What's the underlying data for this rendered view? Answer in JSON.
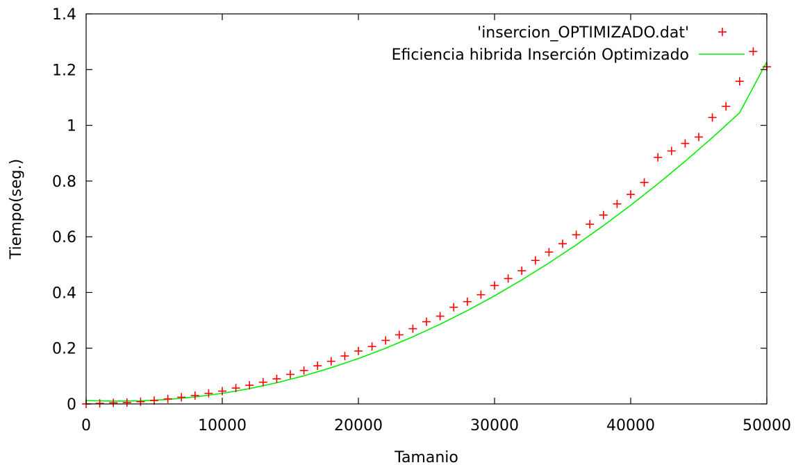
{
  "chart_data": {
    "type": "scatter",
    "xlabel": "Tamanio",
    "ylabel": "Tiempo(seg.)",
    "xlim": [
      0,
      50000
    ],
    "ylim": [
      0,
      1.4
    ],
    "x_ticks": [
      0,
      10000,
      20000,
      30000,
      40000,
      50000
    ],
    "x_tick_labels": [
      "0",
      "10000",
      "20000",
      "30000",
      "40000",
      "50000"
    ],
    "y_ticks": [
      0,
      0.2,
      0.4,
      0.6,
      0.8,
      1.0,
      1.2,
      1.4
    ],
    "y_tick_labels": [
      "0",
      "0.2",
      "0.4",
      "0.6",
      "0.8",
      "1",
      "1.2",
      "1.4"
    ],
    "grid": false,
    "legend_position": "top-right",
    "series": [
      {
        "name": "'insercion_OPTIMIZADO.dat'",
        "kind": "points",
        "marker": "plus",
        "color": "#ff0000",
        "x": [
          0,
          1000,
          2000,
          3000,
          4000,
          5000,
          6000,
          7000,
          8000,
          9000,
          10000,
          11000,
          12000,
          13000,
          14000,
          15000,
          16000,
          17000,
          18000,
          19000,
          20000,
          21000,
          22000,
          23000,
          24000,
          25000,
          26000,
          27000,
          28000,
          29000,
          30000,
          31000,
          32000,
          33000,
          34000,
          35000,
          36000,
          37000,
          38000,
          39000,
          40000,
          41000,
          42000,
          43000,
          44000,
          45000,
          46000,
          47000,
          48000,
          49000,
          50000
        ],
        "y": [
          0.0,
          0.002,
          0.004,
          0.005,
          0.008,
          0.012,
          0.018,
          0.024,
          0.03,
          0.038,
          0.046,
          0.057,
          0.067,
          0.078,
          0.09,
          0.106,
          0.12,
          0.137,
          0.153,
          0.172,
          0.19,
          0.206,
          0.228,
          0.248,
          0.27,
          0.295,
          0.315,
          0.347,
          0.367,
          0.392,
          0.425,
          0.45,
          0.478,
          0.515,
          0.545,
          0.575,
          0.607,
          0.645,
          0.678,
          0.718,
          0.752,
          0.795,
          0.885,
          0.908,
          0.935,
          0.958,
          1.028,
          1.068,
          1.158,
          1.265,
          1.21
        ]
      },
      {
        "name": "Eficiencia hibrida Inserción Optimizado",
        "kind": "line",
        "color": "#00ee00",
        "x": [
          0,
          2000,
          4000,
          6000,
          8000,
          10000,
          12000,
          14000,
          16000,
          18000,
          20000,
          22000,
          24000,
          26000,
          28000,
          30000,
          32000,
          34000,
          36000,
          38000,
          40000,
          42000,
          44000,
          46000,
          48000,
          50000
        ],
        "y": [
          0.012,
          0.01,
          0.011,
          0.016,
          0.025,
          0.038,
          0.055,
          0.076,
          0.101,
          0.13,
          0.163,
          0.2,
          0.241,
          0.286,
          0.335,
          0.388,
          0.445,
          0.506,
          0.571,
          0.64,
          0.713,
          0.79,
          0.871,
          0.956,
          1.045,
          1.228
        ]
      }
    ]
  }
}
